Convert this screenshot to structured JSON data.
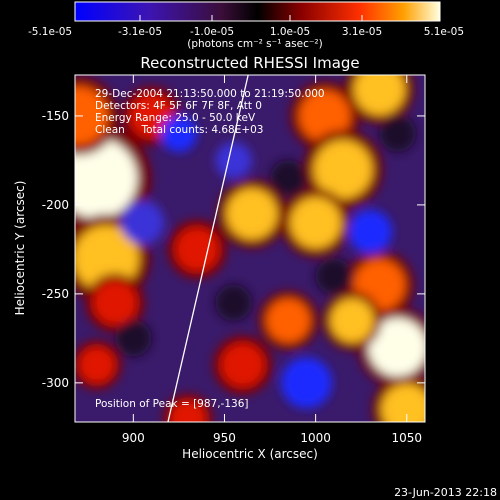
{
  "chart_data": {
    "type": "heatmap",
    "title": "Reconstructed RHESSI Image",
    "xlabel": "Heliocentric X (arcsec)",
    "ylabel": "Heliocentric Y (arcsec)",
    "xlim": [
      868,
      1060
    ],
    "ylim": [
      -322,
      -127
    ],
    "x_ticks": [
      900,
      950,
      1000,
      1050
    ],
    "y_ticks": [
      -300,
      -250,
      -200,
      -150
    ],
    "grid": false,
    "colorbar": {
      "ticks": [
        "-5.1e-05",
        "-3.1e-05",
        "-1.0e-05",
        "1.0e-05",
        "3.1e-05",
        "5.1e-05"
      ],
      "min": -5.1e-05,
      "max": 5.1e-05,
      "label": "(photons cm⁻² s⁻¹ asec⁻²)"
    },
    "annotations": [
      "29-Dec-2004 21:13:50.000 to 21:19:50.000",
      "Detectors: 4F 5F 6F 7F 8F, Att 0",
      "Energy Range: 25.0 - 50.0 keV",
      "Clean     Total counts: 4.68E+03"
    ],
    "peak_label": "Position of Peak = [987,-136]",
    "peak": [
      987,
      -136
    ],
    "limb_line": [
      [
        919,
        -322
      ],
      [
        963,
        -127
      ]
    ],
    "blobs": [
      {
        "x": 880,
        "y": -185,
        "level": 0.95,
        "r": 22
      },
      {
        "x": 885,
        "y": -230,
        "level": 0.85,
        "r": 18
      },
      {
        "x": 870,
        "y": -150,
        "level": 0.7,
        "r": 16
      },
      {
        "x": 910,
        "y": -150,
        "level": 0.6,
        "r": 12
      },
      {
        "x": 1035,
        "y": -135,
        "level": 0.8,
        "r": 14
      },
      {
        "x": 1005,
        "y": -150,
        "level": 0.75,
        "r": 14
      },
      {
        "x": 1015,
        "y": -180,
        "level": 0.8,
        "r": 16
      },
      {
        "x": 965,
        "y": -205,
        "level": 0.85,
        "r": 14
      },
      {
        "x": 1000,
        "y": -210,
        "level": 0.85,
        "r": 14
      },
      {
        "x": 935,
        "y": -225,
        "level": 0.55,
        "r": 12
      },
      {
        "x": 890,
        "y": -255,
        "level": 0.6,
        "r": 12
      },
      {
        "x": 985,
        "y": -265,
        "level": 0.7,
        "r": 12
      },
      {
        "x": 1035,
        "y": -245,
        "level": 0.75,
        "r": 14
      },
      {
        "x": 1045,
        "y": -280,
        "level": 0.95,
        "r": 16
      },
      {
        "x": 1020,
        "y": -265,
        "level": 0.8,
        "r": 12
      },
      {
        "x": 960,
        "y": -290,
        "level": 0.6,
        "r": 12
      },
      {
        "x": 1050,
        "y": -315,
        "level": 0.85,
        "r": 14
      },
      {
        "x": 930,
        "y": -320,
        "level": 0.55,
        "r": 10
      },
      {
        "x": 880,
        "y": -290,
        "level": 0.5,
        "r": 10
      },
      {
        "x": 925,
        "y": -160,
        "level": -0.8,
        "r": 10
      },
      {
        "x": 955,
        "y": -175,
        "level": -0.7,
        "r": 10
      },
      {
        "x": 905,
        "y": -210,
        "level": -0.7,
        "r": 12
      },
      {
        "x": 985,
        "y": -185,
        "level": -0.6,
        "r": 10
      },
      {
        "x": 1030,
        "y": -215,
        "level": -0.8,
        "r": 12
      },
      {
        "x": 955,
        "y": -255,
        "level": -0.6,
        "r": 10
      },
      {
        "x": 995,
        "y": -300,
        "level": -0.85,
        "r": 14
      },
      {
        "x": 1010,
        "y": -240,
        "level": -0.5,
        "r": 10
      },
      {
        "x": 900,
        "y": -275,
        "level": -0.6,
        "r": 10
      },
      {
        "x": 1045,
        "y": -160,
        "level": -0.5,
        "r": 10
      }
    ]
  },
  "footer": {
    "timestamp": "23-Jun-2013 22:18"
  }
}
